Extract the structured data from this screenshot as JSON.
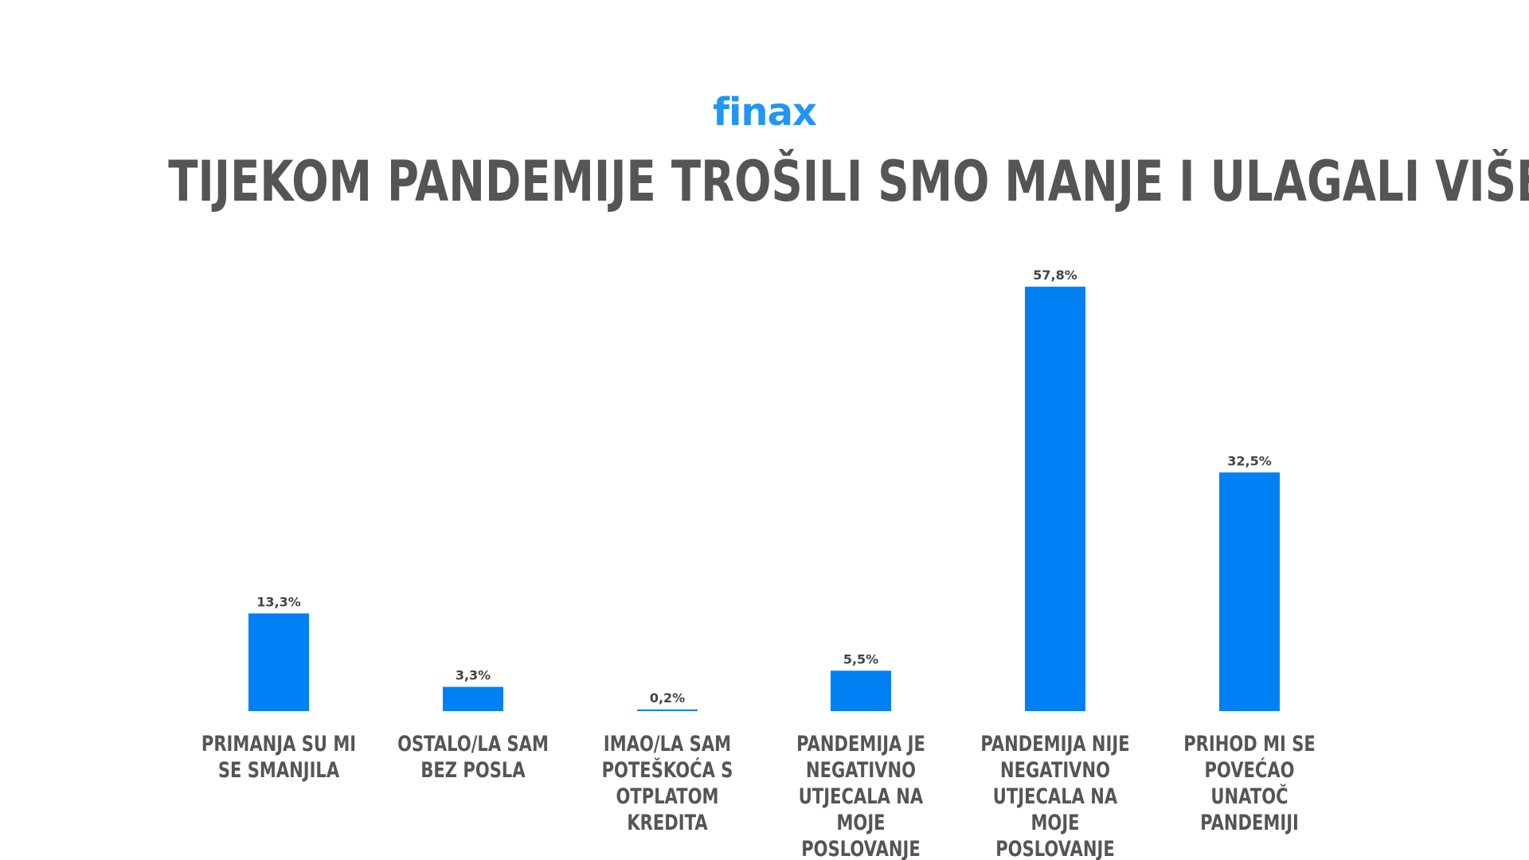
{
  "logo": "finax",
  "chart_data": {
    "type": "bar",
    "title": "TIJEKOM PANDEMIJE TROŠILI SMO MANJE I ULAGALI VIŠE",
    "categories": [
      "PRIMANJA SU MI SE SMANJILA",
      "OSTALO/LA SAM BEZ POSLA",
      "IMAO/LA SAM POTEŠKOĆA S OTPLATOM KREDITA",
      "PANDEMIJA JE NEGATIVNO UTJECALA NA MOJE POSLOVANJE",
      "PANDEMIJA NIJE NEGATIVNO UTJECALA NA MOJE POSLOVANJE",
      "PRIHOD MI SE POVEĆAO UNATOČ PANDEMIJI"
    ],
    "values": [
      13.3,
      3.3,
      0.2,
      5.5,
      57.8,
      32.5
    ],
    "data_labels": [
      "13,3%",
      "3,3%",
      "0,2%",
      "5,5%",
      "57,8%",
      "32,5%"
    ],
    "xlabel": "",
    "ylabel": "",
    "ylim": [
      0,
      57.8
    ],
    "grid": false,
    "bar_color": "#0080f5"
  }
}
